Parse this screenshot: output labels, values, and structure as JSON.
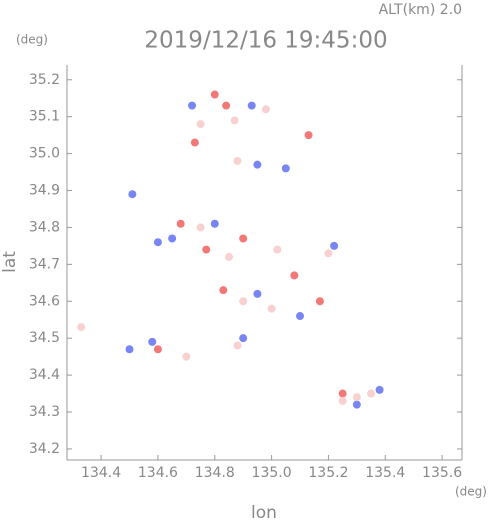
{
  "chart_data": {
    "type": "scatter",
    "title": "2019/12/16 19:45:00",
    "subtitle": "ALT(km) 2.0",
    "x_label": "lon",
    "y_label": "lat",
    "x_unit": "(deg)",
    "y_unit": "(deg)",
    "xlim": [
      134.28,
      135.67
    ],
    "ylim": [
      34.17,
      35.24
    ],
    "xticks": [
      134.4,
      134.6,
      134.8,
      {
        "value": 135.0,
        "label": "135.0"
      },
      135.2,
      135.4,
      135.6
    ],
    "yticks": [
      34.2,
      34.3,
      34.4,
      34.5,
      34.6,
      34.7,
      34.8,
      34.9,
      {
        "value": 35.0,
        "label": "35.0"
      },
      35.1,
      35.2
    ],
    "series": [
      {
        "color": "#f06060",
        "x": [
          134.8,
          134.84,
          135.13,
          134.73,
          134.68,
          134.9,
          135.08,
          134.77,
          135.17,
          134.6,
          135.25,
          134.83
        ],
        "values": [
          35.16,
          35.13,
          35.05,
          35.03,
          34.81,
          34.77,
          34.67,
          34.74,
          34.6,
          34.47,
          34.35,
          34.63
        ]
      },
      {
        "color": "#6070f0",
        "x": [
          134.72,
          134.93,
          135.05,
          134.95,
          134.65,
          134.8,
          135.22,
          134.95,
          134.5,
          134.58,
          135.3,
          135.38,
          134.6,
          135.1,
          134.9,
          134.51
        ],
        "values": [
          35.13,
          35.13,
          34.96,
          34.97,
          34.77,
          34.81,
          34.75,
          34.62,
          34.47,
          34.49,
          34.32,
          34.36,
          34.76,
          34.56,
          34.5,
          34.89
        ]
      },
      {
        "color": "#f8c8c8",
        "x": [
          134.75,
          134.87,
          134.98,
          134.88,
          134.75,
          134.85,
          135.02,
          135.2,
          134.9,
          135.0,
          134.88,
          135.3,
          135.25,
          134.33,
          134.7,
          135.35
        ],
        "values": [
          35.08,
          35.09,
          35.12,
          34.98,
          34.8,
          34.72,
          34.74,
          34.73,
          34.6,
          34.58,
          34.48,
          34.34,
          34.33,
          34.53,
          34.45,
          34.35
        ]
      }
    ]
  }
}
